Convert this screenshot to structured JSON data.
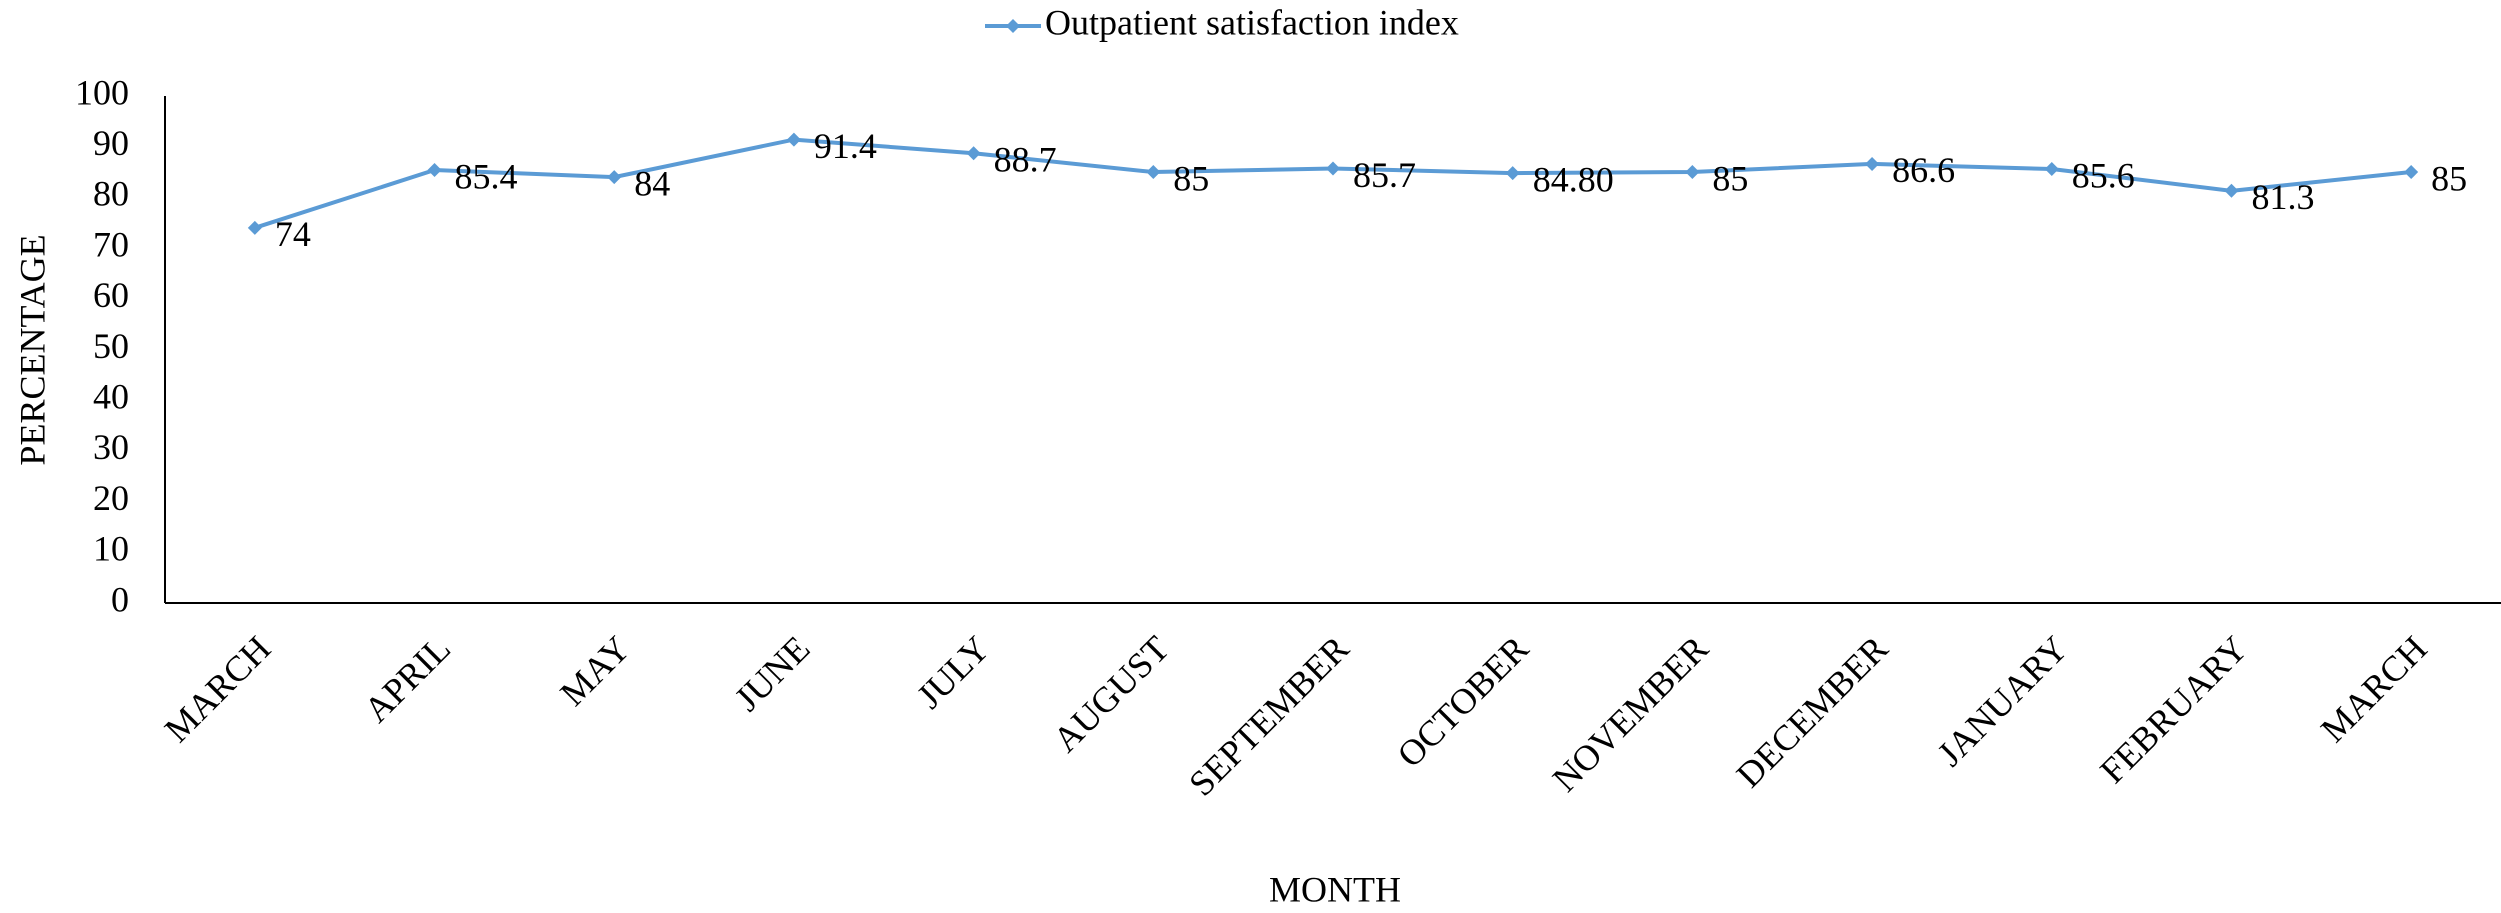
{
  "chart_data": {
    "type": "line",
    "x_label": "MONTH",
    "y_label": "PERCENTAGE",
    "categories": [
      "MARCH",
      "APRIL",
      "MAY",
      "JUNE",
      "JULY",
      "AUGUST",
      "SEPTEMBER",
      "OCTOBER",
      "NOVEMBER",
      "DECEMBER",
      "JANUARY",
      "FEBRUARY",
      "MARCH"
    ],
    "series": [
      {
        "name": "Outpatient satisfaction index",
        "color": "#5b9bd5",
        "values": [
          74,
          85.4,
          84,
          91.4,
          88.7,
          85,
          85.7,
          84.8,
          85,
          86.6,
          85.6,
          81.3,
          85
        ],
        "value_labels": [
          "74",
          "85.4",
          "84",
          "91.4",
          "88.7",
          "85",
          "85.7",
          "84.80",
          "85",
          "86.6",
          "85.6",
          "81.3",
          "85"
        ]
      }
    ],
    "ylim": [
      0,
      100
    ],
    "yticks": [
      0,
      10,
      20,
      30,
      40,
      50,
      60,
      70,
      80,
      90,
      100
    ],
    "grid": false,
    "legend": "top"
  }
}
